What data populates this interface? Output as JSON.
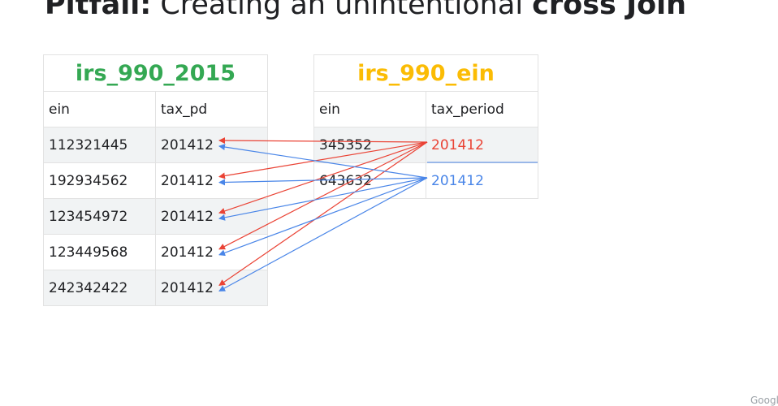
{
  "title": {
    "prefix": "Pitfall:",
    "middle": " Creating an unintentional ",
    "emphasis": "cross Join"
  },
  "colors": {
    "green": "#34a853",
    "yellow": "#fbbc04",
    "red": "#ea4335",
    "blue": "#4a86e8"
  },
  "left_table": {
    "name": "irs_990_2015",
    "columns": [
      "ein",
      "tax_pd"
    ],
    "rows": [
      [
        "112321445",
        "201412"
      ],
      [
        "192934562",
        "201412"
      ],
      [
        "123454972",
        "201412"
      ],
      [
        "123449568",
        "201412"
      ],
      [
        "242342422",
        "201412"
      ]
    ]
  },
  "right_table": {
    "name": "irs_990_ein",
    "columns": [
      "ein",
      "tax_period"
    ],
    "rows": [
      [
        "345352",
        "201412"
      ],
      [
        "643632",
        "201412"
      ]
    ]
  },
  "footer": {
    "logo_text": "Googl"
  }
}
